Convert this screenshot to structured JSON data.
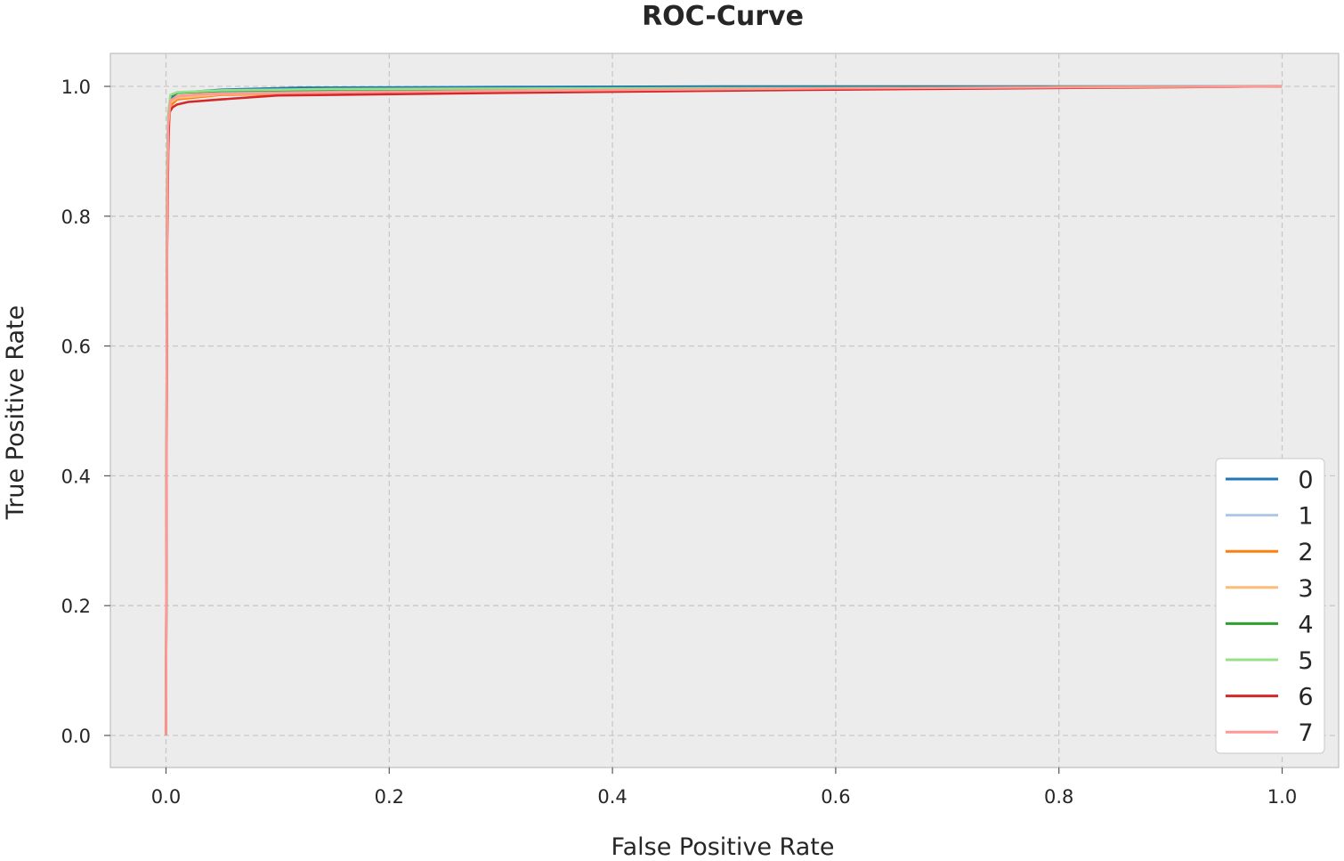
{
  "chart_data": {
    "type": "line",
    "title": "ROC-Curve",
    "xlabel": "False Positive Rate",
    "ylabel": "True Positive Rate",
    "xlim": [
      -0.05,
      1.05
    ],
    "ylim": [
      -0.05,
      1.05
    ],
    "xticks": [
      "0.0",
      "0.2",
      "0.4",
      "0.6",
      "0.8",
      "1.0"
    ],
    "yticks": [
      "0.0",
      "0.2",
      "0.4",
      "0.6",
      "0.8",
      "1.0"
    ],
    "grid": true,
    "legend_position": "lower-right",
    "series": [
      {
        "name": "0",
        "color": "#1f77b4",
        "x": [
          0,
          0.001,
          0.002,
          0.004,
          0.01,
          0.05,
          0.12,
          0.3,
          0.5,
          1.0
        ],
        "y": [
          0,
          0.85,
          0.95,
          0.982,
          0.99,
          0.995,
          0.998,
          0.999,
          1.0,
          1.0
        ]
      },
      {
        "name": "1",
        "color": "#aec7e8",
        "x": [
          0,
          0.001,
          0.002,
          0.004,
          0.01,
          0.05,
          0.15,
          0.4,
          0.8,
          1.0
        ],
        "y": [
          0,
          0.8,
          0.93,
          0.975,
          0.985,
          0.99,
          0.993,
          0.996,
          0.999,
          1.0
        ]
      },
      {
        "name": "2",
        "color": "#ff7f0e",
        "x": [
          0,
          0.001,
          0.002,
          0.004,
          0.01,
          0.05,
          0.2,
          0.5,
          0.8,
          1.0
        ],
        "y": [
          0,
          0.8,
          0.93,
          0.97,
          0.98,
          0.987,
          0.99,
          0.995,
          0.999,
          1.0
        ]
      },
      {
        "name": "3",
        "color": "#ffbb78",
        "x": [
          0,
          0.001,
          0.002,
          0.004,
          0.01,
          0.05,
          0.2,
          0.5,
          0.8,
          1.0
        ],
        "y": [
          0,
          0.82,
          0.94,
          0.975,
          0.982,
          0.988,
          0.991,
          0.995,
          0.999,
          1.0
        ]
      },
      {
        "name": "4",
        "color": "#2ca02c",
        "x": [
          0,
          0.001,
          0.002,
          0.004,
          0.01,
          0.05,
          0.15,
          0.4,
          0.86,
          1.0
        ],
        "y": [
          0,
          0.86,
          0.95,
          0.985,
          0.99,
          0.993,
          0.995,
          0.997,
          0.999,
          1.0
        ]
      },
      {
        "name": "5",
        "color": "#98df8a",
        "x": [
          0,
          0.001,
          0.002,
          0.004,
          0.01,
          0.05,
          0.15,
          0.4,
          0.86,
          1.0
        ],
        "y": [
          0,
          0.87,
          0.96,
          0.987,
          0.991,
          0.994,
          0.996,
          0.997,
          0.998,
          1.0
        ]
      },
      {
        "name": "6",
        "color": "#d62728",
        "x": [
          0,
          0.001,
          0.002,
          0.003,
          0.006,
          0.01,
          0.02,
          0.05,
          0.1,
          0.3,
          0.6,
          1.0
        ],
        "y": [
          0,
          0.75,
          0.9,
          0.96,
          0.968,
          0.972,
          0.976,
          0.98,
          0.986,
          0.99,
          0.995,
          1.0
        ]
      },
      {
        "name": "7",
        "color": "#ff9896",
        "x": [
          0,
          0.001,
          0.002,
          0.004,
          0.01,
          0.03,
          0.1,
          0.3,
          0.6,
          1.0
        ],
        "y": [
          0,
          0.8,
          0.94,
          0.978,
          0.985,
          0.988,
          0.99,
          0.993,
          0.997,
          1.0
        ]
      }
    ]
  }
}
